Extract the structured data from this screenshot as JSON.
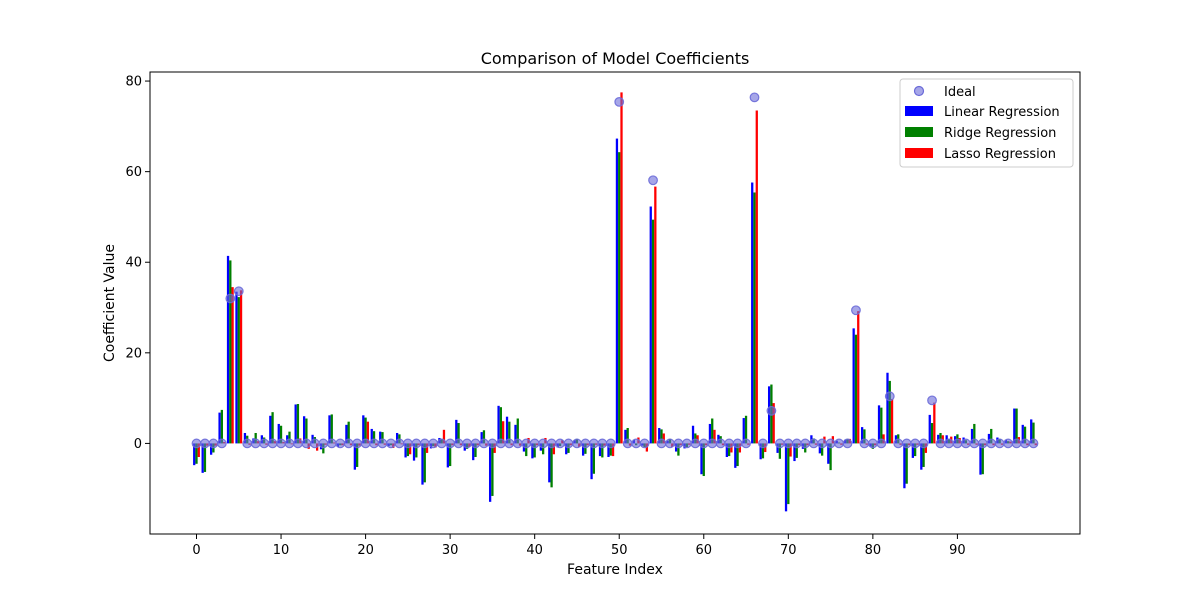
{
  "chart_data": {
    "type": "bar",
    "title": "Comparison of Model Coefficients",
    "xlabel": "Feature Index",
    "ylabel": "Coefficient Value",
    "xlim": [
      -5.5,
      104.5
    ],
    "ylim": [
      -20,
      82
    ],
    "xticks": [
      0,
      10,
      20,
      30,
      40,
      50,
      60,
      70,
      80,
      90
    ],
    "yticks": [
      0,
      20,
      40,
      60,
      80
    ],
    "legend_position": "top-right",
    "x": [
      0,
      1,
      2,
      3,
      4,
      5,
      6,
      7,
      8,
      9,
      10,
      11,
      12,
      13,
      14,
      15,
      16,
      17,
      18,
      19,
      20,
      21,
      22,
      23,
      24,
      25,
      26,
      27,
      28,
      29,
      30,
      31,
      32,
      33,
      34,
      35,
      36,
      37,
      38,
      39,
      40,
      41,
      42,
      43,
      44,
      45,
      46,
      47,
      48,
      49,
      50,
      51,
      52,
      53,
      54,
      55,
      56,
      57,
      58,
      59,
      60,
      61,
      62,
      63,
      64,
      65,
      66,
      67,
      68,
      69,
      70,
      71,
      72,
      73,
      74,
      75,
      76,
      77,
      78,
      79,
      80,
      81,
      82,
      83,
      84,
      85,
      86,
      87,
      88,
      89,
      90,
      91,
      92,
      93,
      94,
      95,
      96,
      97,
      98,
      99
    ],
    "ideal": {
      "name": "Ideal",
      "color": "#6a6ad8",
      "values": [
        0,
        0,
        0,
        0,
        32,
        33.6,
        0,
        0,
        0,
        0,
        0,
        0,
        0,
        0,
        0,
        0,
        0,
        0,
        0,
        0,
        0,
        0,
        0,
        0,
        0,
        0,
        0,
        0,
        0,
        0,
        0,
        0,
        0,
        0,
        0,
        0,
        0,
        0,
        0,
        0,
        0,
        0,
        0,
        0,
        0,
        0,
        0,
        0,
        0,
        0,
        75.4,
        0,
        0,
        0,
        58.1,
        0,
        0,
        0,
        0,
        0,
        0,
        0,
        0,
        0,
        0,
        0,
        76.4,
        0,
        7.2,
        0,
        0,
        0,
        0,
        0,
        0,
        0,
        0,
        0,
        29.4,
        0,
        0,
        0,
        10.4,
        0,
        0,
        0,
        0,
        9.5,
        0,
        0,
        0,
        0,
        0,
        0,
        0,
        0,
        0,
        0,
        0,
        0
      ]
    },
    "series": [
      {
        "name": "Linear Regression",
        "color": "#0000ff",
        "values": [
          -4.8,
          -6.5,
          -2.5,
          6.8,
          41.4,
          33.5,
          2.3,
          1.1,
          1.8,
          6.1,
          4.3,
          1.8,
          8.6,
          6.0,
          1.9,
          -1.3,
          6.2,
          -0.8,
          4.1,
          -5.8,
          6.2,
          3.2,
          2.6,
          -0.6,
          2.3,
          -3.1,
          -3.8,
          -9.1,
          -1.1,
          1.2,
          -5.3,
          5.2,
          -1.6,
          -3.7,
          2.5,
          -12.9,
          8.3,
          5.9,
          4.1,
          -1.8,
          -3.3,
          -1.6,
          -8.6,
          -0.9,
          -2.4,
          0.7,
          -2.7,
          -7.9,
          -2.8,
          -3.0,
          67.3,
          3.0,
          0.8,
          -0.5,
          52.3,
          3.4,
          0.6,
          -1.8,
          -1.1,
          3.9,
          -6.8,
          4.3,
          1.9,
          -3.0,
          -5.4,
          5.6,
          57.6,
          -3.5,
          12.6,
          -2.1,
          -15.0,
          -3.9,
          -1.2,
          1.8,
          -2.2,
          -4.5,
          0.6,
          0.8,
          25.4,
          3.6,
          -0.7,
          8.4,
          15.6,
          1.8,
          -9.9,
          -3.2,
          -5.8,
          6.3,
          1.9,
          1.8,
          1.6,
          1.3,
          3.2,
          -6.9,
          2.1,
          1.3,
          0.8,
          7.7,
          4.1,
          5.3
        ]
      },
      {
        "name": "Ridge Regression",
        "color": "#008000",
        "values": [
          -4.5,
          -6.3,
          -2.0,
          7.4,
          40.4,
          32.3,
          1.7,
          2.3,
          1.3,
          6.9,
          3.9,
          2.6,
          8.7,
          5.5,
          1.4,
          -2.2,
          6.4,
          -0.4,
          4.8,
          -5.2,
          5.7,
          2.7,
          2.5,
          -0.4,
          2.0,
          -2.8,
          -3.1,
          -8.6,
          -0.6,
          1.0,
          -5.0,
          4.5,
          -1.2,
          -3.0,
          2.9,
          -11.6,
          8.0,
          4.8,
          5.5,
          -2.8,
          -3.1,
          -2.4,
          -9.7,
          -0.6,
          -2.1,
          1.0,
          -2.3,
          -6.7,
          -3.1,
          -2.7,
          64.3,
          3.4,
          -0.4,
          -0.8,
          49.4,
          3.1,
          1.0,
          -2.7,
          -0.8,
          2.2,
          -7.2,
          5.5,
          1.6,
          -2.8,
          -5.0,
          6.1,
          55.4,
          -3.3,
          13.0,
          -3.4,
          -13.4,
          -3.2,
          -2.0,
          1.1,
          -2.7,
          -5.9,
          0.2,
          1.0,
          24.0,
          3.1,
          -1.2,
          7.9,
          13.8,
          2.0,
          -8.9,
          -2.8,
          -5.2,
          4.5,
          2.3,
          1.0,
          2.0,
          0.7,
          4.3,
          -6.8,
          3.2,
          1.0,
          0.5,
          7.7,
          3.7,
          4.6
        ]
      },
      {
        "name": "Lasso Regression",
        "color": "#ff0000",
        "values": [
          -3.0,
          -0.5,
          -0.5,
          0.3,
          34.5,
          33.8,
          -0.3,
          0.5,
          -0.3,
          0.5,
          0.3,
          -0.2,
          1.1,
          -1.2,
          -1.6,
          -0.3,
          0.2,
          -0.4,
          -0.4,
          -0.5,
          4.8,
          -0.4,
          -0.3,
          -1.0,
          -0.2,
          -2.4,
          -0.4,
          -2.1,
          -0.9,
          3.0,
          -0.4,
          -0.4,
          -0.8,
          -0.4,
          -0.5,
          -2.1,
          4.9,
          -0.4,
          -0.5,
          1.2,
          -0.4,
          1.2,
          -2.4,
          0.7,
          -0.4,
          -0.8,
          -0.4,
          -0.3,
          -0.5,
          -2.8,
          77.5,
          -0.5,
          1.3,
          -1.8,
          56.7,
          2.2,
          -0.8,
          -0.4,
          -0.3,
          1.8,
          -0.4,
          3.0,
          -0.4,
          -2.0,
          -2.0,
          -0.3,
          73.5,
          -1.9,
          8.9,
          -0.3,
          -2.9,
          -0.4,
          -0.4,
          -0.3,
          1.5,
          1.6,
          -0.3,
          1.0,
          29.2,
          -0.3,
          -0.4,
          2.0,
          9.8,
          -0.3,
          -0.4,
          -0.3,
          -2.1,
          9.0,
          1.8,
          1.5,
          1.2,
          -0.3,
          -0.3,
          -0.4,
          -0.4,
          -0.3,
          0.4,
          1.4,
          -0.4,
          -0.4
        ]
      }
    ]
  }
}
